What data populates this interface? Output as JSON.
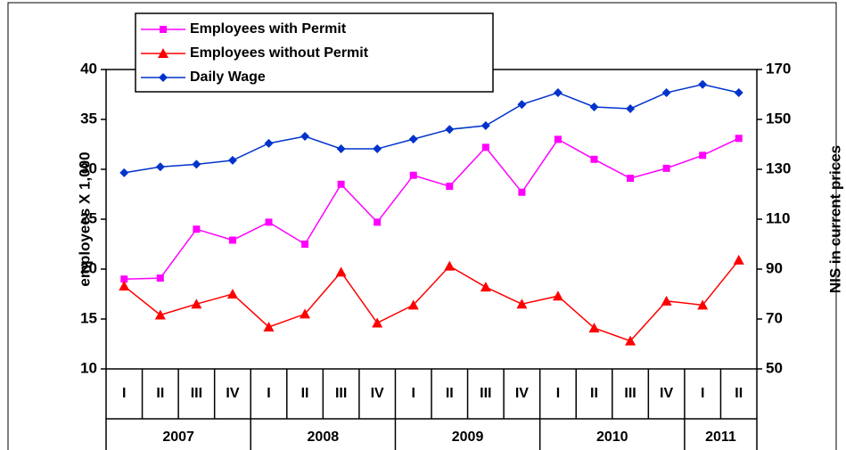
{
  "chart_data": {
    "type": "line",
    "categories": [
      "I",
      "II",
      "III",
      "IV",
      "I",
      "II",
      "III",
      "IV",
      "I",
      "II",
      "III",
      "IV",
      "I",
      "II",
      "III",
      "IV",
      "I",
      "II"
    ],
    "x_groups": [
      {
        "label": "2007",
        "span": 4
      },
      {
        "label": "2008",
        "span": 4
      },
      {
        "label": "2009",
        "span": 4
      },
      {
        "label": "2010",
        "span": 4
      },
      {
        "label": "2011",
        "span": 2
      }
    ],
    "series": [
      {
        "name": "Employees with Permit",
        "color": "#ff00ff",
        "marker": "square",
        "values": [
          19.0,
          19.1,
          24.0,
          22.9,
          24.7,
          22.5,
          28.5,
          24.7,
          29.4,
          28.3,
          32.2,
          27.7,
          33.0,
          31.0,
          29.1,
          30.1,
          31.4,
          33.1
        ]
      },
      {
        "name": "Employees without Permit",
        "color": "#ff0000",
        "marker": "triangle",
        "values": [
          18.3,
          15.4,
          16.5,
          17.5,
          14.2,
          15.5,
          19.7,
          14.6,
          16.4,
          20.3,
          18.2,
          16.5,
          17.3,
          14.1,
          12.8,
          16.8,
          16.4,
          20.9
        ]
      },
      {
        "name": "Daily Wage",
        "color": "#0033cc",
        "marker": "diamond",
        "axis": "y2",
        "values": [
          128.6,
          131.0,
          132.0,
          133.6,
          140.4,
          143.2,
          138.2,
          138.2,
          142.1,
          146.0,
          147.5,
          156.0,
          160.7,
          155.0,
          154.3,
          160.7,
          164.0,
          160.7
        ]
      }
    ],
    "y_label": "employees X 1,000",
    "y2_label": "NIS in current prices",
    "ylim": [
      10,
      40
    ],
    "yticks": [
      10,
      15,
      20,
      25,
      30,
      35,
      40
    ],
    "y2lim": [
      50,
      170
    ],
    "y2ticks": [
      50,
      70,
      90,
      110,
      130,
      150,
      170
    ],
    "legend": "top-left"
  }
}
